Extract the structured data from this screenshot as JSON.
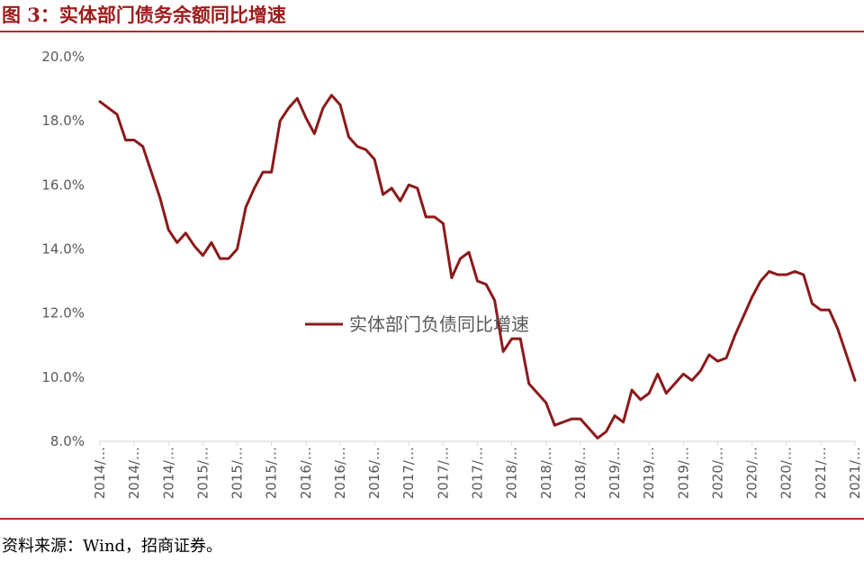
{
  "figure": {
    "title": "图 3：实体部门债务余额同比增速",
    "source": "资料来源：Wind，招商证券。"
  },
  "colors": {
    "accent": "#b7282e",
    "series": "#8b1a1a",
    "axis_text": "#595959",
    "axis_line": "#d9d9d9"
  },
  "chart_data": {
    "type": "line",
    "title": "",
    "xlabel": "",
    "ylabel": "",
    "ylim": [
      8.0,
      20.0
    ],
    "y_ticks": [
      "20.0%",
      "18.0%",
      "16.0%",
      "14.0%",
      "12.0%",
      "10.0%",
      "8.0%"
    ],
    "grid": false,
    "legend_position": "center",
    "x_tick_labels": [
      "2014/…",
      "2014/…",
      "2014/…",
      "2015/…",
      "2015/…",
      "2015/…",
      "2016/…",
      "2016/…",
      "2016/…",
      "2017/…",
      "2017/…",
      "2017/…",
      "2018/…",
      "2018/…",
      "2018/…",
      "2019/…",
      "2019/…",
      "2019/…",
      "2020/…",
      "2020/…",
      "2020/…",
      "2021/…",
      "2021/…"
    ],
    "series": [
      {
        "name": "实体部门负债同比增速",
        "values": [
          18.6,
          18.4,
          18.2,
          17.4,
          17.4,
          17.2,
          16.4,
          15.6,
          14.6,
          14.2,
          14.5,
          14.1,
          13.8,
          14.2,
          13.7,
          13.7,
          14.0,
          15.3,
          15.9,
          16.4,
          16.4,
          18.0,
          18.4,
          18.7,
          18.1,
          17.6,
          18.4,
          18.8,
          18.5,
          17.5,
          17.2,
          17.1,
          16.8,
          15.7,
          15.9,
          15.5,
          16.0,
          15.9,
          15.0,
          15.0,
          14.8,
          13.1,
          13.7,
          13.9,
          13.0,
          12.9,
          12.4,
          10.8,
          11.2,
          11.2,
          9.8,
          9.5,
          9.2,
          8.5,
          8.6,
          8.7,
          8.7,
          8.4,
          8.1,
          8.3,
          8.8,
          8.6,
          9.6,
          9.3,
          9.5,
          10.1,
          9.5,
          9.8,
          10.1,
          9.9,
          10.2,
          10.7,
          10.5,
          10.6,
          11.3,
          11.9,
          12.5,
          13.0,
          13.3,
          13.2,
          13.2,
          13.3,
          13.2,
          12.3,
          12.1,
          12.1,
          11.5,
          10.7,
          9.9
        ]
      }
    ]
  }
}
